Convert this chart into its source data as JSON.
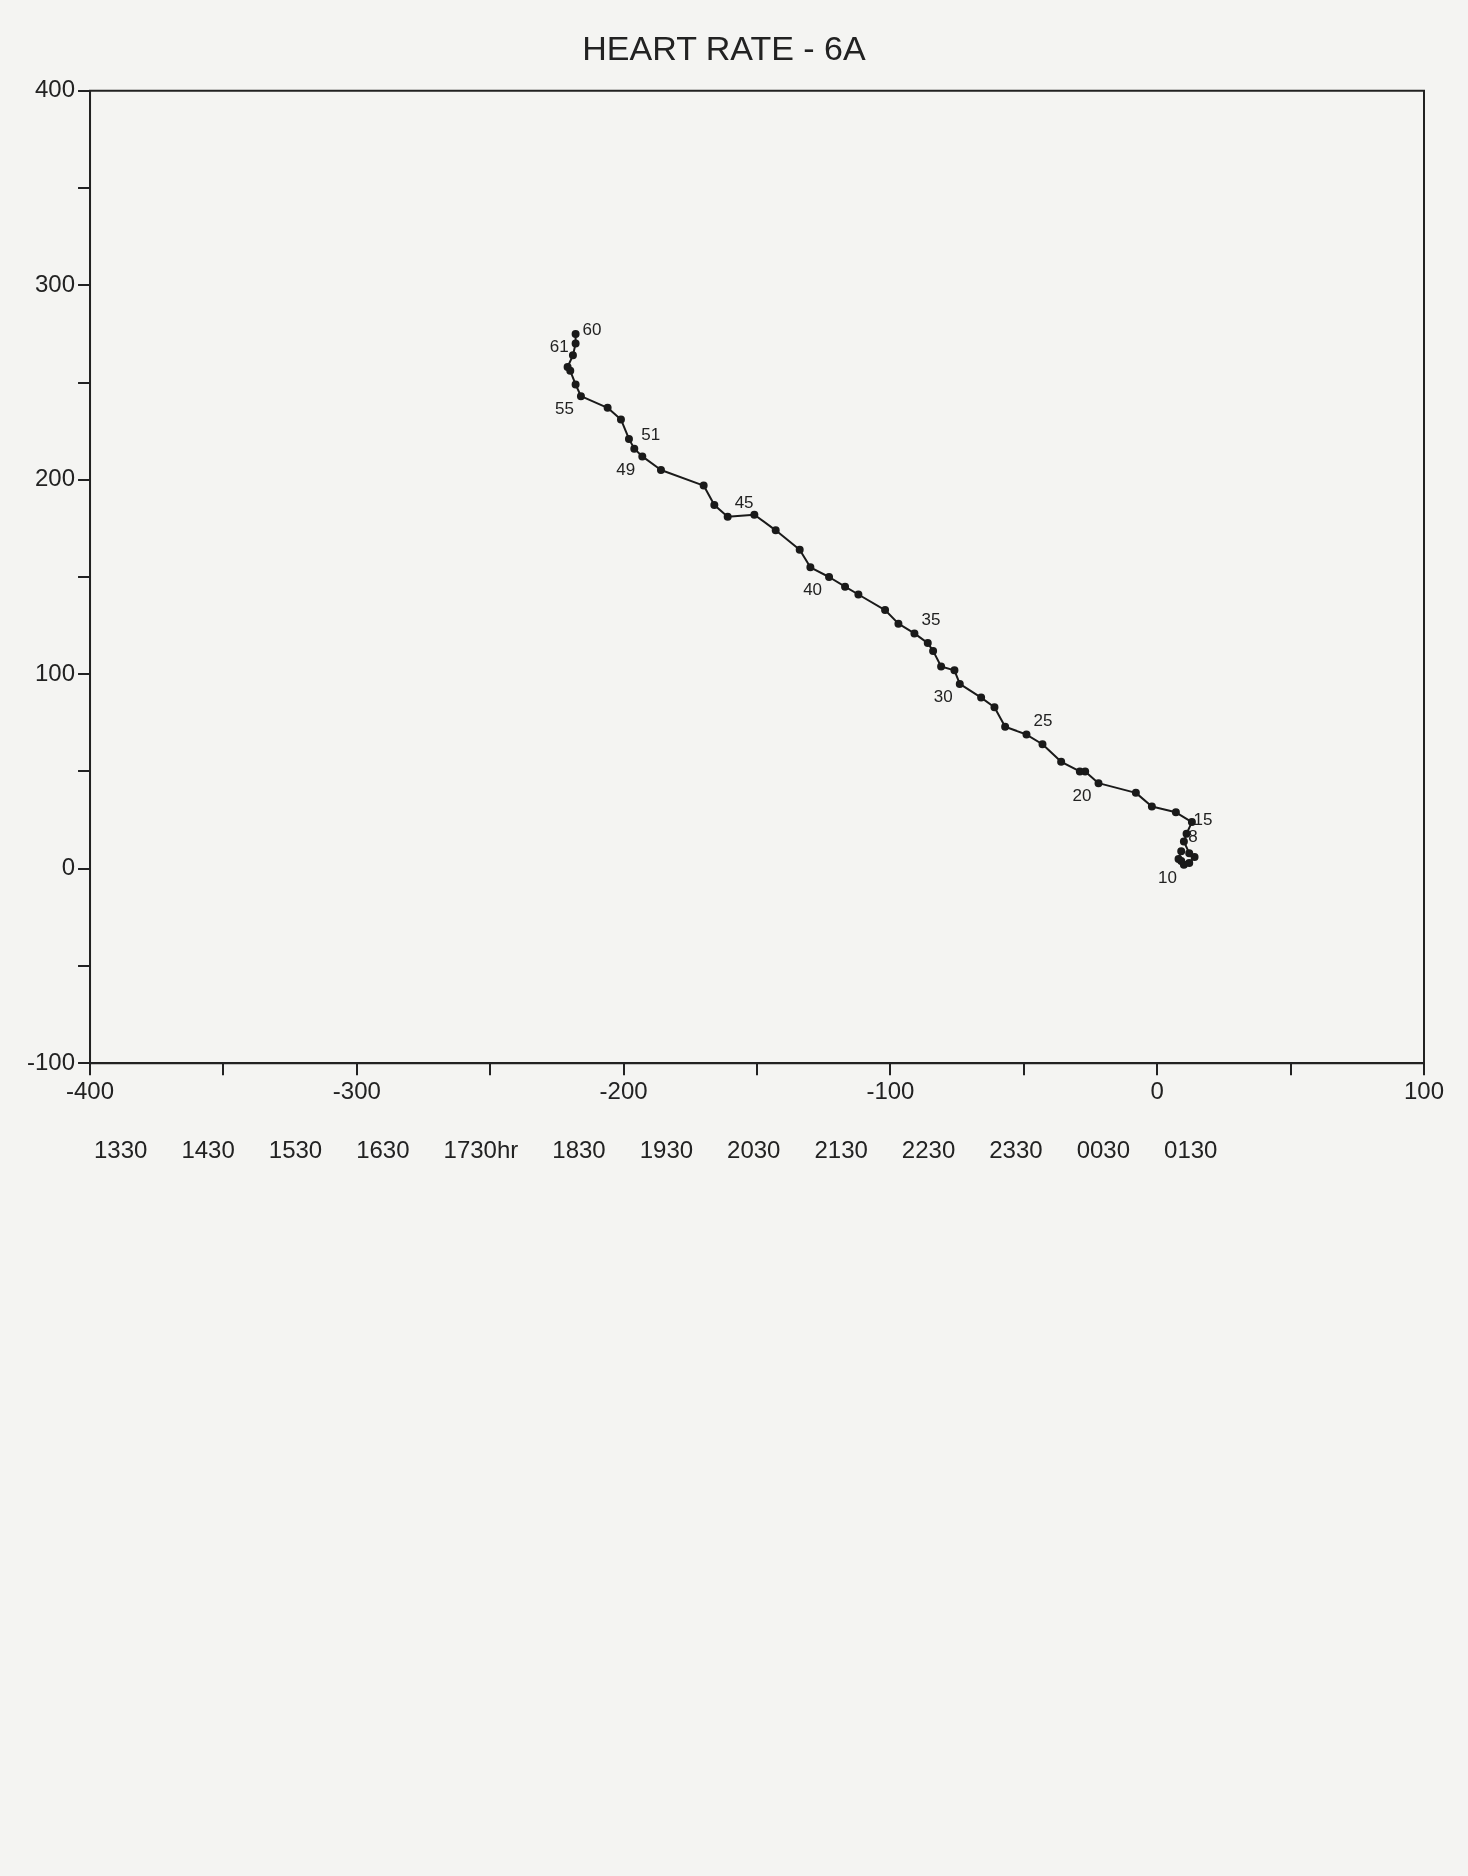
{
  "chart_data": {
    "type": "line",
    "title": "HEART RATE - 6A",
    "x": [
      9,
      8,
      9,
      10,
      12,
      14,
      12,
      10,
      11,
      13,
      7,
      -2,
      -8,
      -22,
      -27,
      -29,
      -36,
      -43,
      -49,
      -57,
      -61,
      -66,
      -74,
      -76,
      -81,
      -84,
      -86,
      -91,
      -97,
      -102,
      -112,
      -117,
      -123,
      -130,
      -134,
      -143,
      -151,
      -161,
      -166,
      -170,
      -186,
      -193,
      -196,
      -198,
      -201,
      -206,
      -216,
      -218,
      -220,
      -221,
      -219,
      -218,
      -218
    ],
    "values": [
      9,
      5,
      4,
      2,
      3,
      6,
      8,
      14,
      18,
      24,
      29,
      32,
      39,
      44,
      50,
      50,
      55,
      64,
      69,
      73,
      83,
      88,
      95,
      102,
      104,
      112,
      116,
      121,
      126,
      133,
      141,
      145,
      150,
      155,
      164,
      174,
      182,
      181,
      187,
      197,
      205,
      212,
      216,
      221,
      231,
      237,
      243,
      249,
      256,
      258,
      264,
      270,
      275
    ],
    "color": "#1a1a1a",
    "marker": "circle",
    "line_style": "solid",
    "legend": false,
    "grid": false,
    "xlim": [
      -400,
      100
    ],
    "xticks": [
      -400,
      {
        "value": -350,
        "label": null
      },
      -300,
      {
        "value": -250,
        "label": null
      },
      -200,
      {
        "value": -150,
        "label": null
      },
      -100,
      {
        "value": -50,
        "label": null
      },
      0,
      {
        "value": 50,
        "label": null
      },
      100
    ],
    "ylim": [
      -100,
      400
    ],
    "yticks": [
      -100,
      {
        "value": -50,
        "label": null
      },
      0,
      {
        "value": 50,
        "label": null
      },
      100,
      {
        "value": 150,
        "label": null
      },
      200,
      {
        "value": 250,
        "label": null
      },
      300,
      {
        "value": 350,
        "label": null
      },
      400
    ],
    "annotations": [
      {
        "text": "8",
        "x": 9,
        "y": 9
      },
      {
        "text": "10",
        "x": 10,
        "y": 2
      },
      {
        "text": "15",
        "x": 11,
        "y": 18
      },
      {
        "text": "20",
        "x": -22,
        "y": 44
      },
      {
        "text": "25",
        "x": -49,
        "y": 69
      },
      {
        "text": "30",
        "x": -74,
        "y": 95
      },
      {
        "text": "35",
        "x": -91,
        "y": 121
      },
      {
        "text": "40",
        "x": -123,
        "y": 150
      },
      {
        "text": "45",
        "x": -161,
        "y": 181
      },
      {
        "text": "49",
        "x": -193,
        "y": 212
      },
      {
        "text": "51",
        "x": -196,
        "y": 216
      },
      {
        "text": "55",
        "x": -216,
        "y": 243
      },
      {
        "text": "60",
        "x": -218,
        "y": 270
      },
      {
        "text": "61",
        "x": -218,
        "y": 275
      },
      "1330",
      "1430",
      "1530",
      "1630",
      "1730hr",
      "1830",
      "1930",
      "2030",
      "2130",
      "2230",
      "2330",
      "0030",
      "0130"
    ]
  }
}
